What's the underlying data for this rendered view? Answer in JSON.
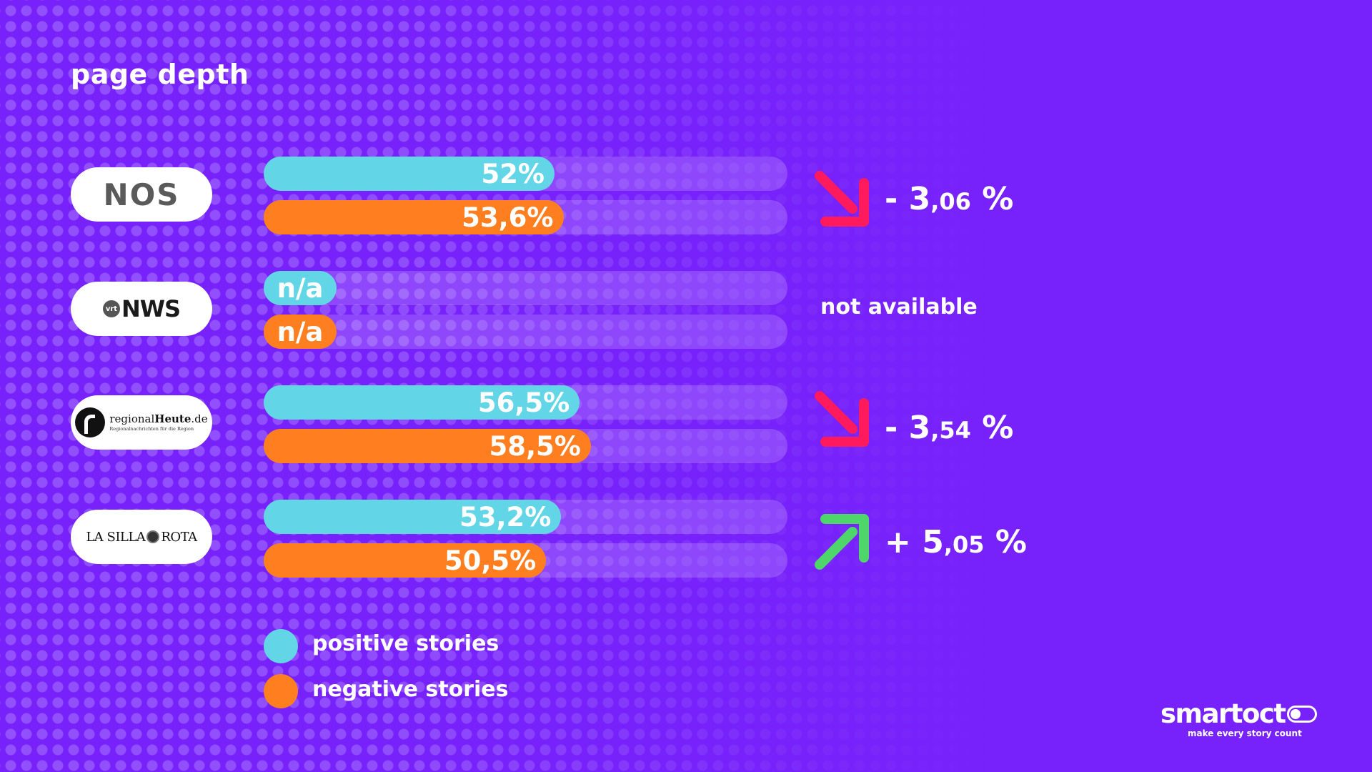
{
  "page_title": "page depth",
  "colors": {
    "positive": "#62d5e6",
    "negative": "#ff7f20",
    "down": "#ff1a5e",
    "up": "#4fd66b",
    "background": "#7722fa"
  },
  "publishers": [
    {
      "logo_text": "NOS",
      "icon": "nos-logo"
    },
    {
      "logo_text": "NWS",
      "badge_text": "vrt",
      "icon": "vrt-nws-logo"
    },
    {
      "logo_text_plain": "regional",
      "logo_text_bold": "Heute",
      "logo_text_suffix": ".de",
      "logo_sub": "Regionalnachrichten für die Region",
      "icon": "regionalheute-logo"
    },
    {
      "logo_text_left": "LA SILLA",
      "logo_text_right": "ROTA",
      "icon": "la-silla-rota-logo"
    }
  ],
  "chart_data": {
    "type": "bar",
    "title": "page depth",
    "categories": [
      "NOS",
      "vrt NWS",
      "regionalHeute.de",
      "LA SILLA ROTA"
    ],
    "series": [
      {
        "name": "positive stories",
        "values": [
          52,
          null,
          56.5,
          53.2
        ],
        "labels": [
          "52%",
          "n/a",
          "56,5%",
          "53,2%"
        ]
      },
      {
        "name": "negative stories",
        "values": [
          53.6,
          null,
          58.5,
          50.5
        ],
        "labels": [
          "53,6%",
          "n/a",
          "58,5%",
          "50,5%"
        ]
      }
    ],
    "changes": [
      {
        "direction": "down",
        "sign": "- ",
        "major": "3",
        "minor": ",06",
        "unit": " %"
      },
      {
        "direction": "none",
        "text": "not available"
      },
      {
        "direction": "down",
        "sign": "- ",
        "major": "3",
        "minor": ",54",
        "unit": " %"
      },
      {
        "direction": "up",
        "sign": "+ ",
        "major": "5",
        "minor": ",05",
        "unit": " %"
      }
    ],
    "ylim": [
      0,
      100
    ],
    "legend": [
      {
        "label": "positive stories",
        "color": "#62d5e6"
      },
      {
        "label": "negative stories",
        "color": "#ff7f20"
      }
    ],
    "legend_position": "bottom-left"
  },
  "brand": {
    "name": "smartocto",
    "name_visible": "smartoct",
    "tagline": "make every story count"
  }
}
